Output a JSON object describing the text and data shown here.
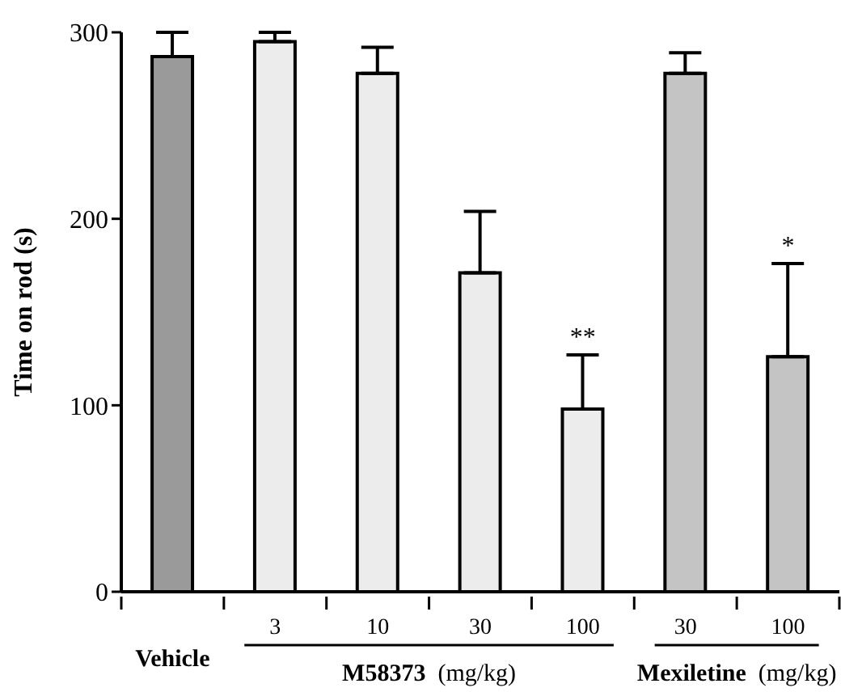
{
  "chart_data": {
    "type": "bar",
    "ylabel": "Time on rod (s)",
    "categories": [
      "Vehicle",
      "3",
      "10",
      "30",
      "100",
      "30",
      "100"
    ],
    "values": [
      287,
      295,
      278,
      171,
      98,
      278,
      126
    ],
    "errors": [
      [
        287,
        300
      ],
      [
        295,
        300
      ],
      [
        278,
        292
      ],
      [
        171,
        204
      ],
      [
        98,
        127
      ],
      [
        278,
        289
      ],
      [
        126,
        176
      ]
    ],
    "colors": [
      "#9a9a9a",
      "#ececec",
      "#ececec",
      "#ececec",
      "#ececec",
      "#c4c4c4",
      "#c4c4c4"
    ],
    "annotations": [
      "M58373  (mg/kg)",
      "Mexiletine  (mg/kg)",
      "**",
      "*"
    ],
    "ylim": [
      0,
      300
    ],
    "yticks": [
      0,
      100,
      200,
      300
    ],
    "grid": false,
    "legend": false
  }
}
